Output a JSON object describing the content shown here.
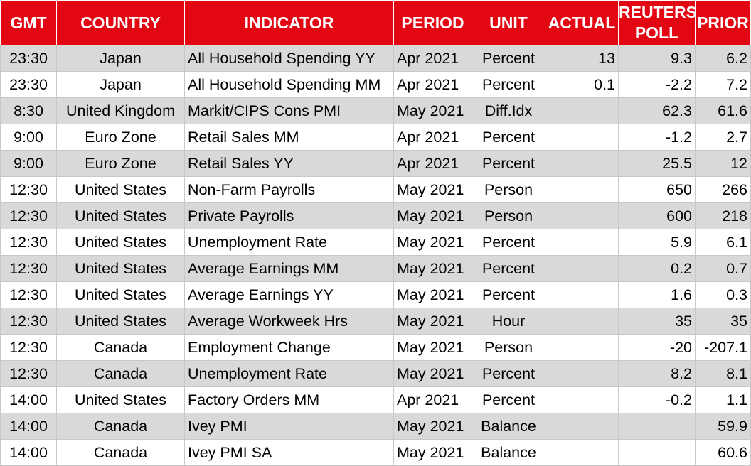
{
  "headers": {
    "gmt": "GMT",
    "country": "COUNTRY",
    "indicator": "INDICATOR",
    "period": "PERIOD",
    "unit": "UNIT",
    "actual": "ACTUAL",
    "poll_line1": "REUTERS",
    "poll_line2": "POLL",
    "prior": "PRIOR"
  },
  "colors": {
    "header_background": "#e30613",
    "header_text": "#ffffff",
    "shaded_row": "#d9d9d9",
    "plain_row": "#ffffff"
  },
  "rows": [
    {
      "gmt": "23:30",
      "country": "Japan",
      "indicator": "All Household Spending YY",
      "period": "Apr 2021",
      "unit": "Percent",
      "actual": "13",
      "poll": "9.3",
      "prior": "6.2"
    },
    {
      "gmt": "23:30",
      "country": "Japan",
      "indicator": "All Household Spending MM",
      "period": "Apr 2021",
      "unit": "Percent",
      "actual": "0.1",
      "poll": "-2.2",
      "prior": "7.2"
    },
    {
      "gmt": "8:30",
      "country": "United Kingdom",
      "indicator": "Markit/CIPS Cons PMI",
      "period": "May 2021",
      "unit": "Diff.Idx",
      "actual": "",
      "poll": "62.3",
      "prior": "61.6"
    },
    {
      "gmt": "9:00",
      "country": "Euro Zone",
      "indicator": "Retail Sales MM",
      "period": "Apr 2021",
      "unit": "Percent",
      "actual": "",
      "poll": "-1.2",
      "prior": "2.7"
    },
    {
      "gmt": "9:00",
      "country": "Euro Zone",
      "indicator": "Retail Sales YY",
      "period": "Apr 2021",
      "unit": "Percent",
      "actual": "",
      "poll": "25.5",
      "prior": "12"
    },
    {
      "gmt": "12:30",
      "country": "United States",
      "indicator": "Non-Farm Payrolls",
      "period": "May 2021",
      "unit": "Person",
      "actual": "",
      "poll": "650",
      "prior": "266"
    },
    {
      "gmt": "12:30",
      "country": "United States",
      "indicator": "Private Payrolls",
      "period": "May 2021",
      "unit": "Person",
      "actual": "",
      "poll": "600",
      "prior": "218"
    },
    {
      "gmt": "12:30",
      "country": "United States",
      "indicator": "Unemployment Rate",
      "period": "May 2021",
      "unit": "Percent",
      "actual": "",
      "poll": "5.9",
      "prior": "6.1"
    },
    {
      "gmt": "12:30",
      "country": "United States",
      "indicator": "Average Earnings MM",
      "period": "May 2021",
      "unit": "Percent",
      "actual": "",
      "poll": "0.2",
      "prior": "0.7"
    },
    {
      "gmt": "12:30",
      "country": "United States",
      "indicator": "Average Earnings YY",
      "period": "May 2021",
      "unit": "Percent",
      "actual": "",
      "poll": "1.6",
      "prior": "0.3"
    },
    {
      "gmt": "12:30",
      "country": "United States",
      "indicator": "Average Workweek Hrs",
      "period": "May 2021",
      "unit": "Hour",
      "actual": "",
      "poll": "35",
      "prior": "35"
    },
    {
      "gmt": "12:30",
      "country": "Canada",
      "indicator": "Employment Change",
      "period": "May 2021",
      "unit": "Person",
      "actual": "",
      "poll": "-20",
      "prior": "-207.1"
    },
    {
      "gmt": "12:30",
      "country": "Canada",
      "indicator": "Unemployment Rate",
      "period": "May 2021",
      "unit": "Percent",
      "actual": "",
      "poll": "8.2",
      "prior": "8.1"
    },
    {
      "gmt": "14:00",
      "country": "United States",
      "indicator": "Factory Orders MM",
      "period": "Apr 2021",
      "unit": "Percent",
      "actual": "",
      "poll": "-0.2",
      "prior": "1.1"
    },
    {
      "gmt": "14:00",
      "country": "Canada",
      "indicator": "Ivey PMI",
      "period": "May 2021",
      "unit": "Balance",
      "actual": "",
      "poll": "",
      "prior": "59.9"
    },
    {
      "gmt": "14:00",
      "country": "Canada",
      "indicator": "Ivey PMI SA",
      "period": "May 2021",
      "unit": "Balance",
      "actual": "",
      "poll": "",
      "prior": "60.6"
    }
  ]
}
